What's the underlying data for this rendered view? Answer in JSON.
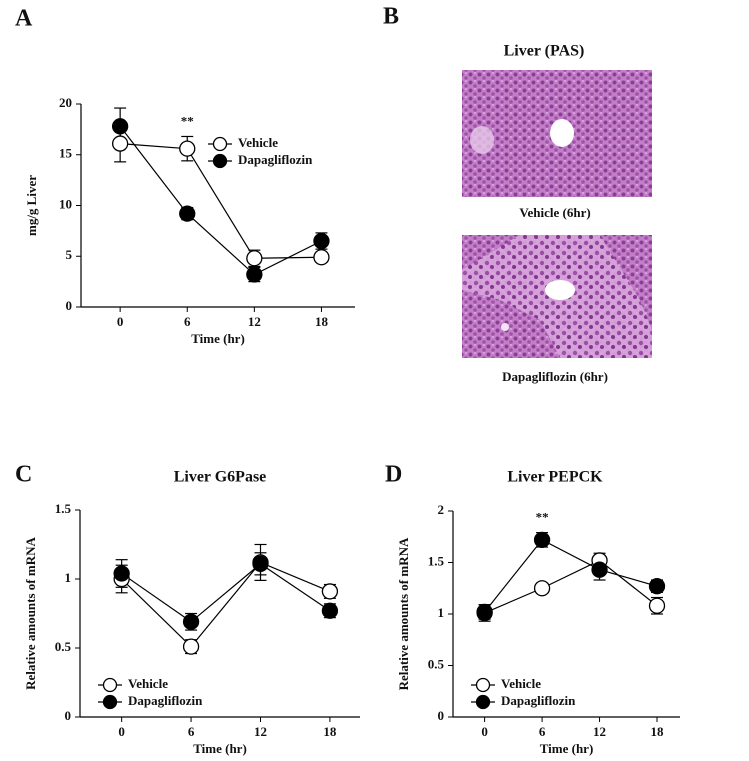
{
  "panel_B": {
    "panel_label": "B",
    "title": "Liver (PAS)",
    "captions": [
      "Vehicle (6hr)",
      "Dapagliflozin  (6hr)"
    ]
  },
  "chart_data": [
    {
      "type": "line",
      "panel_label": "A",
      "ylabel": "mg/g Liver",
      "xlabel": "Time (hr)",
      "x": [
        0,
        6,
        12,
        18
      ],
      "xlim": [
        -3.5,
        21
      ],
      "xticks": [
        0,
        6,
        12,
        18
      ],
      "ylim": [
        0,
        20
      ],
      "yticks": [
        0,
        5,
        10,
        15,
        20
      ],
      "annotation": "**",
      "legend": "upper right",
      "series": [
        {
          "name": "Vehicle",
          "color": "#ffffff",
          "values": [
            16.1,
            15.6,
            4.8,
            4.9
          ],
          "errors": [
            1.8,
            1.2,
            0.8,
            0.5
          ]
        },
        {
          "name": "Dapagliflozin",
          "color": "#000000",
          "values": [
            17.8,
            9.2,
            3.2,
            6.5
          ],
          "errors": [
            1.8,
            0.6,
            0.7,
            0.8
          ]
        }
      ]
    },
    {
      "type": "line",
      "panel_label": "C",
      "title": "Liver G6Pase",
      "ylabel": "Relative amounts of mRNA",
      "xlabel": "Time (hr)",
      "x": [
        0,
        6,
        12,
        18
      ],
      "xlim": [
        -3.6,
        20.6
      ],
      "xticks": [
        0,
        6,
        12,
        18
      ],
      "ylim": [
        0,
        1.5
      ],
      "yticks": [
        0,
        0.5,
        1,
        1.5
      ],
      "legend": "lower left",
      "series": [
        {
          "name": "Vehicle",
          "color": "#ffffff",
          "values": [
            1.0,
            0.51,
            1.12,
            0.91
          ],
          "errors": [
            0.1,
            0.05,
            0.13,
            0.05
          ]
        },
        {
          "name": "Dapagliflozin",
          "color": "#000000",
          "values": [
            1.04,
            0.69,
            1.11,
            0.77
          ],
          "errors": [
            0.1,
            0.06,
            0.08,
            0.05
          ]
        }
      ]
    },
    {
      "type": "line",
      "panel_label": "D",
      "title": "Liver PEPCK",
      "ylabel": "Relative amounts of mRNA",
      "xlabel": "Time (hr)",
      "x": [
        0,
        6,
        12,
        18
      ],
      "xlim": [
        -3.3,
        20.4
      ],
      "xticks": [
        0,
        6,
        12,
        18
      ],
      "ylim": [
        0,
        2
      ],
      "yticks": [
        0,
        0.5,
        1,
        1.5,
        2
      ],
      "annotation": "**",
      "legend": "lower left",
      "series": [
        {
          "name": "Vehicle",
          "color": "#ffffff",
          "values": [
            1.01,
            1.25,
            1.52,
            1.08
          ],
          "errors": [
            0.08,
            0.05,
            0.07,
            0.08
          ]
        },
        {
          "name": "Dapagliflozin",
          "color": "#000000",
          "values": [
            1.02,
            1.72,
            1.43,
            1.27
          ],
          "errors": [
            0.07,
            0.07,
            0.1,
            0.06
          ]
        }
      ]
    }
  ]
}
